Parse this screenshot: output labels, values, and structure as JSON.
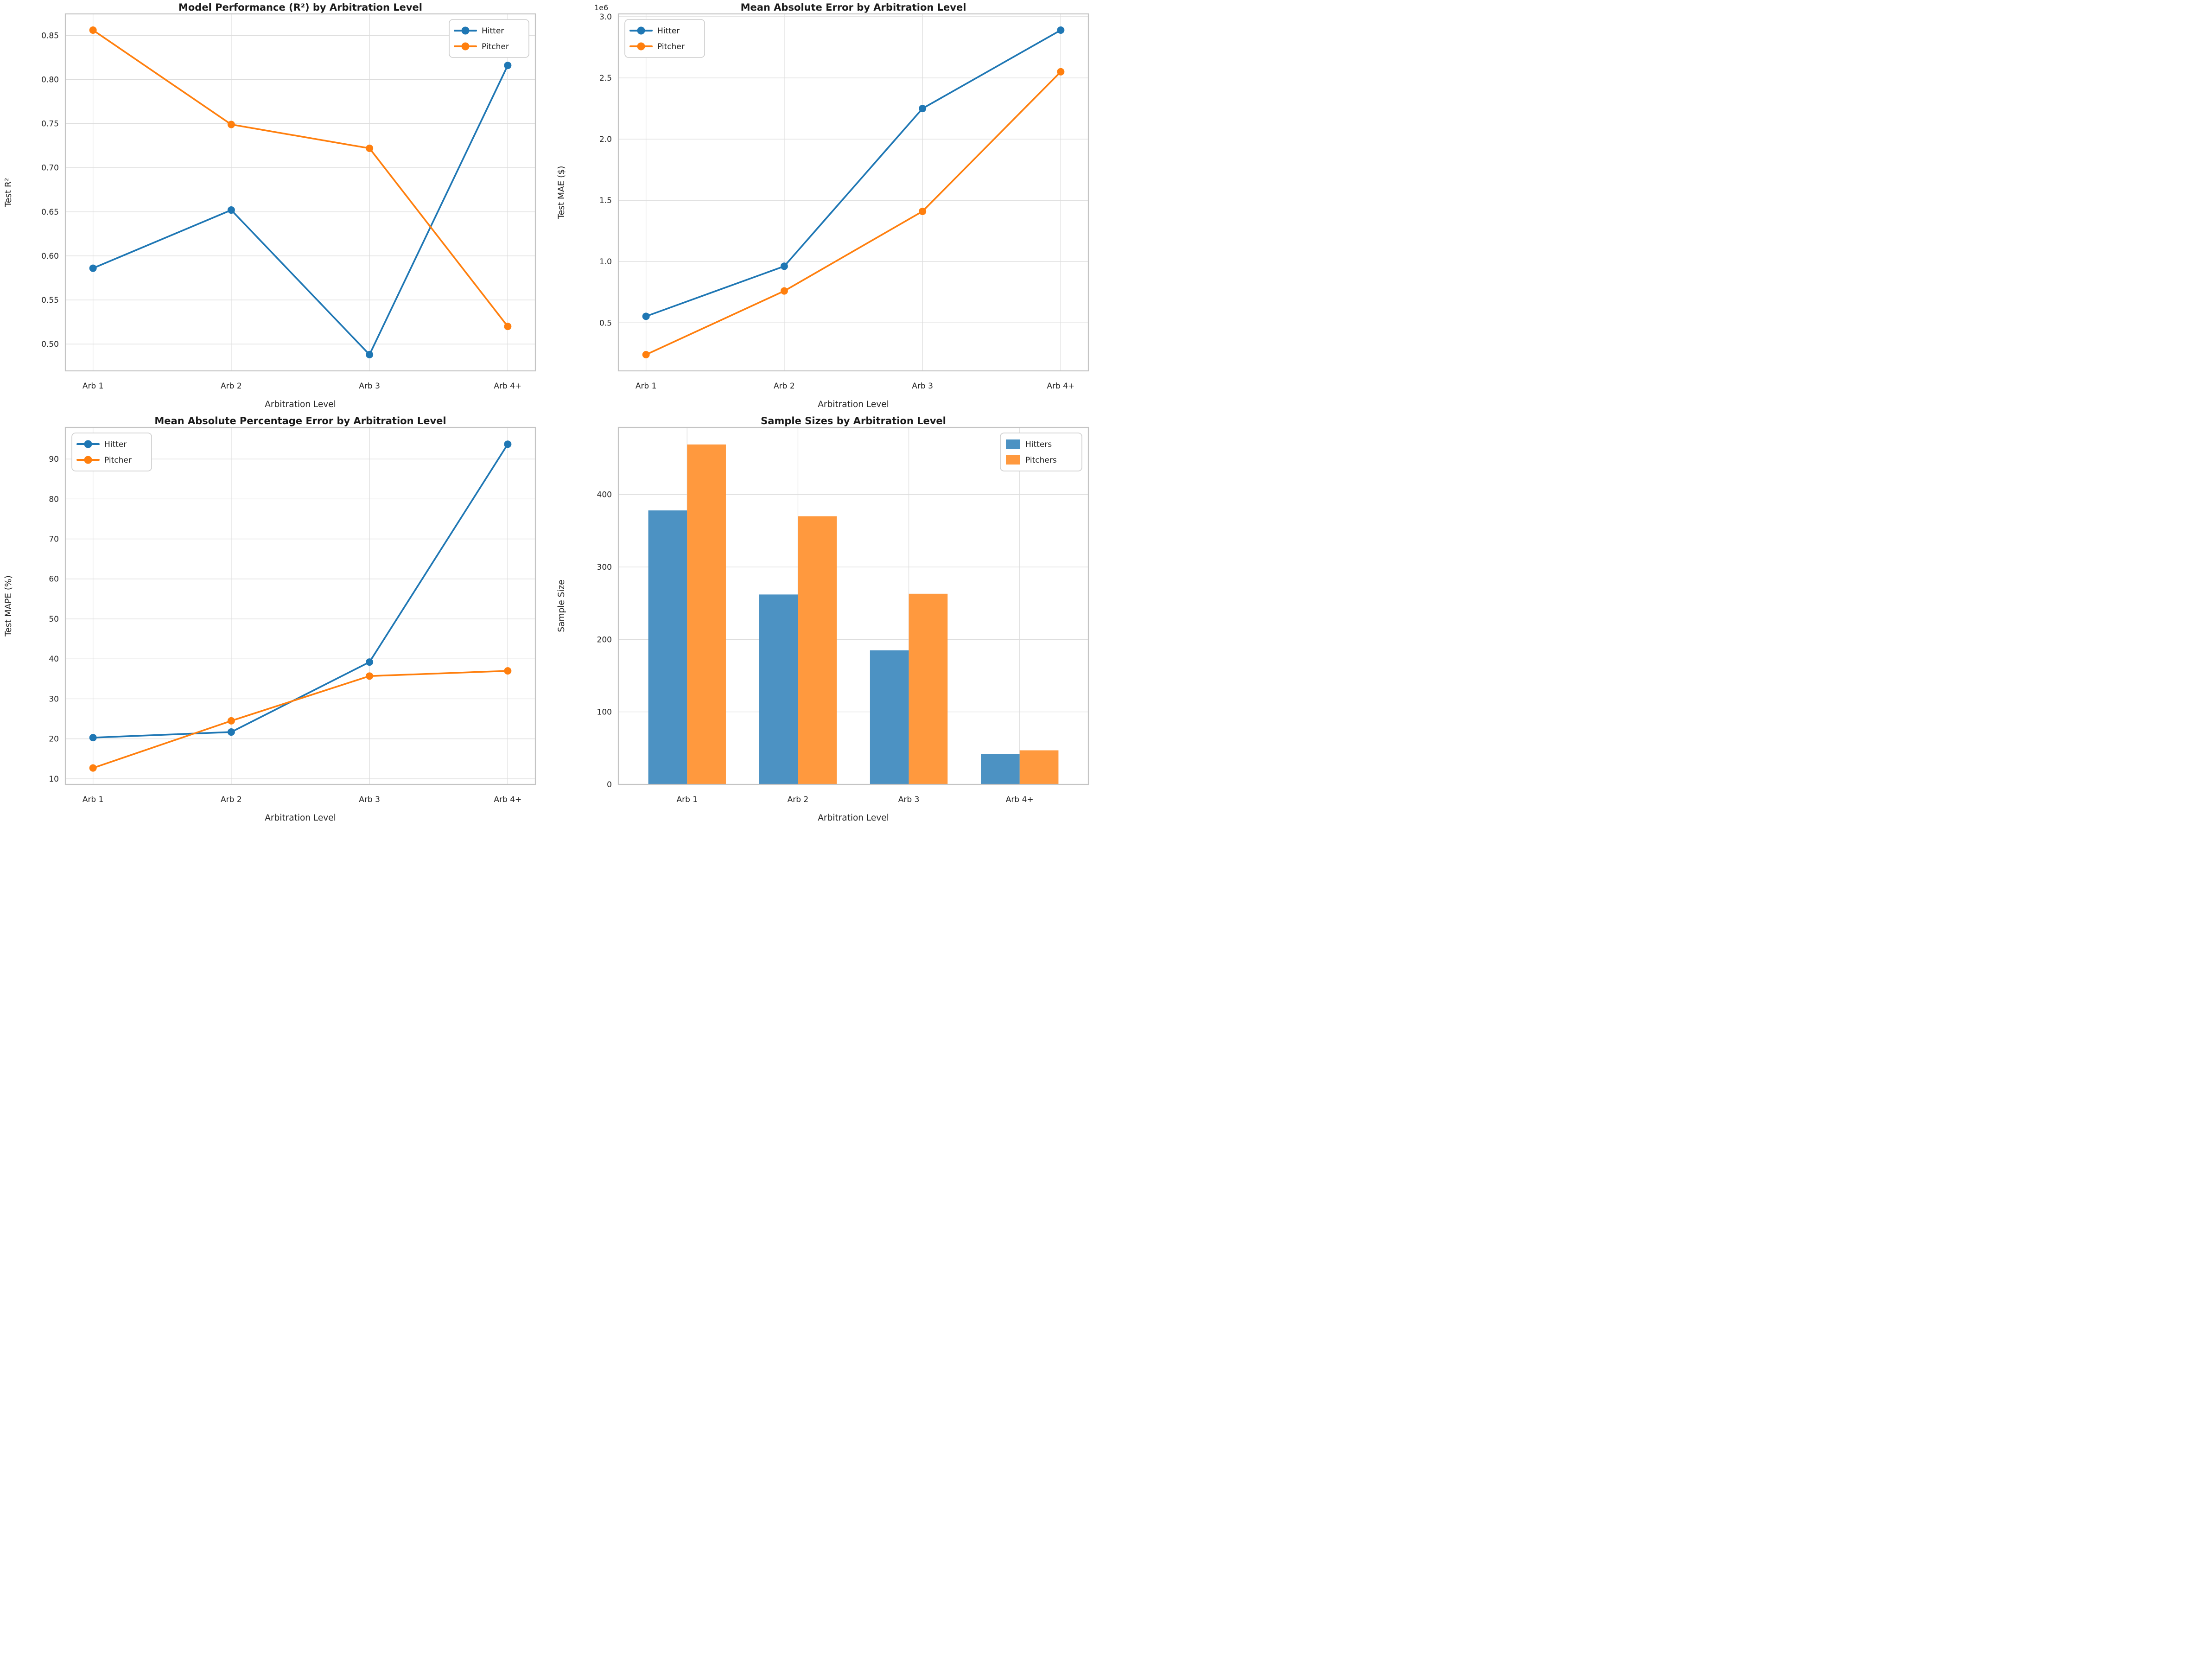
{
  "colors": {
    "hitter_line": "#1f77b4",
    "pitcher_line": "#ff7f0e",
    "hitters_bar": "#4c92c3",
    "pitchers_bar": "#ff993e",
    "grid": "#dddddd",
    "spine": "#c4c4c4",
    "text": "#222222",
    "legend_border": "#cccccc",
    "background": "#ffffff"
  },
  "chart_data": [
    {
      "id": "r2",
      "type": "line",
      "title": "Model Performance (R²) by Arbitration Level",
      "xlabel": "Arbitration Level",
      "ylabel": "Test R²",
      "categories": [
        "Arb 1",
        "Arb 2",
        "Arb 3",
        "Arb 4+"
      ],
      "series": [
        {
          "name": "Hitter",
          "color": "#1f77b4",
          "values": [
            0.586,
            0.652,
            0.488,
            0.816
          ]
        },
        {
          "name": "Pitcher",
          "color": "#ff7f0e",
          "values": [
            0.856,
            0.749,
            0.722,
            0.52
          ]
        }
      ],
      "xlim": [
        -0.2,
        3.2
      ],
      "ylim": [
        0.4696,
        0.8744
      ],
      "ytick_values": [
        0.5,
        0.55,
        0.6,
        0.65,
        0.7,
        0.75,
        0.8,
        0.85
      ],
      "ytick_labels": [
        "0.50",
        "0.55",
        "0.60",
        "0.65",
        "0.70",
        "0.75",
        "0.80",
        "0.85"
      ],
      "grid": true,
      "legend": {
        "position": "upper-right",
        "marker": "line"
      }
    },
    {
      "id": "mae",
      "type": "line",
      "title": "Mean Absolute Error by Arbitration Level",
      "xlabel": "Arbitration Level",
      "ylabel": "Test MAE ($)",
      "offset_text": "1e6",
      "categories": [
        "Arb 1",
        "Arb 2",
        "Arb 3",
        "Arb 4+"
      ],
      "series": [
        {
          "name": "Hitter",
          "color": "#1f77b4",
          "values": [
            553000,
            962000,
            2250000,
            2890000
          ]
        },
        {
          "name": "Pitcher",
          "color": "#ff7f0e",
          "values": [
            240000,
            760000,
            1410000,
            2550000
          ]
        }
      ],
      "xlim": [
        -0.2,
        3.2
      ],
      "ylim": [
        107500,
        3022500
      ],
      "ytick_values": [
        500000,
        1000000,
        1500000,
        2000000,
        2500000,
        3000000
      ],
      "ytick_labels": [
        "0.5",
        "1.0",
        "1.5",
        "2.0",
        "2.5",
        "3.0"
      ],
      "grid": true,
      "legend": {
        "position": "upper-left",
        "marker": "line"
      }
    },
    {
      "id": "mape",
      "type": "line",
      "title": "Mean Absolute Percentage Error by Arbitration Level",
      "xlabel": "Arbitration Level",
      "ylabel": "Test MAPE (%)",
      "categories": [
        "Arb 1",
        "Arb 2",
        "Arb 3",
        "Arb 4+"
      ],
      "series": [
        {
          "name": "Hitter",
          "color": "#1f77b4",
          "values": [
            20.3,
            21.7,
            39.2,
            93.7
          ]
        },
        {
          "name": "Pitcher",
          "color": "#ff7f0e",
          "values": [
            12.7,
            24.5,
            35.7,
            37.0
          ]
        }
      ],
      "xlim": [
        -0.2,
        3.2
      ],
      "ylim": [
        8.6,
        97.9
      ],
      "ytick_values": [
        10,
        20,
        30,
        40,
        50,
        60,
        70,
        80,
        90
      ],
      "ytick_labels": [
        "10",
        "20",
        "30",
        "40",
        "50",
        "60",
        "70",
        "80",
        "90"
      ],
      "grid": true,
      "legend": {
        "position": "upper-left",
        "marker": "line"
      }
    },
    {
      "id": "samples",
      "type": "bar",
      "title": "Sample Sizes by Arbitration Level",
      "xlabel": "Arbitration Level",
      "ylabel": "Sample Size",
      "categories": [
        "Arb 1",
        "Arb 2",
        "Arb 3",
        "Arb 4+"
      ],
      "series": [
        {
          "name": "Hitters",
          "color": "#4c92c3",
          "values": [
            378,
            262,
            185,
            42
          ]
        },
        {
          "name": "Pitchers",
          "color": "#ff993e",
          "values": [
            469,
            370,
            263,
            47
          ]
        }
      ],
      "bar_width": 0.35,
      "xlim": [
        -0.62,
        3.62
      ],
      "ylim": [
        0,
        492.5
      ],
      "ytick_values": [
        0,
        100,
        200,
        300,
        400
      ],
      "ytick_labels": [
        "0",
        "100",
        "200",
        "300",
        "400"
      ],
      "grid": true,
      "legend": {
        "position": "upper-right",
        "marker": "square"
      }
    }
  ]
}
